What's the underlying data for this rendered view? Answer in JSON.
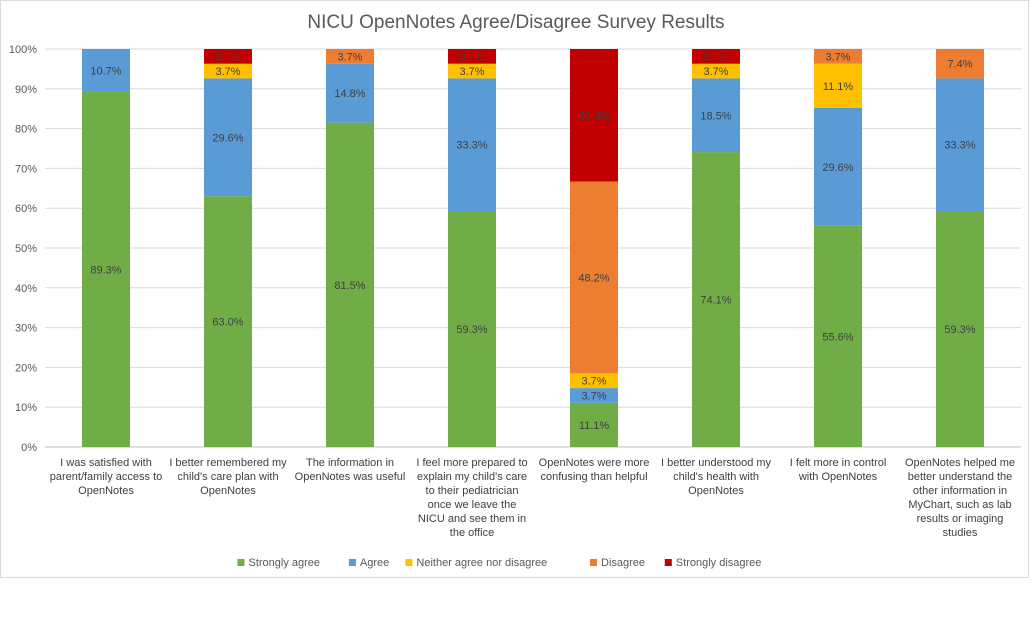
{
  "chart_data": {
    "type": "bar",
    "stacked": true,
    "title": "NICU OpenNotes Agree/Disagree Survey Results",
    "ylim": [
      0,
      100
    ],
    "yticks": [
      "0%",
      "10%",
      "20%",
      "30%",
      "40%",
      "50%",
      "60%",
      "70%",
      "80%",
      "90%",
      "100%"
    ],
    "grid": true,
    "legend_position": "bottom",
    "categories": [
      "I was satisfied with parent/family access to OpenNotes",
      "I better remembered my child's care plan with OpenNotes",
      "The information in OpenNotes was useful",
      "I feel more prepared to explain my child's care to their pediatrician once we leave the NICU and see them in the office",
      "OpenNotes were more confusing than helpful",
      "I better understood my child's health with OpenNotes",
      "I felt more in control with OpenNotes",
      "OpenNotes helped me better understand the other information in MyChart, such as lab results or imaging studies"
    ],
    "series": [
      {
        "name": "Strongly agree",
        "color": "#70ad47",
        "values": [
          89.3,
          63.0,
          81.5,
          59.3,
          11.1,
          74.1,
          55.6,
          59.3
        ],
        "labels": [
          "89.3%",
          "63.0%",
          "81.5%",
          "59.3%",
          "11.1%",
          "74.1%",
          "55.6%",
          "59.3%"
        ]
      },
      {
        "name": "Agree",
        "color": "#5b9bd5",
        "values": [
          10.7,
          29.6,
          14.8,
          33.3,
          3.7,
          18.5,
          29.6,
          33.3
        ],
        "labels": [
          "10.7%",
          "29.6%",
          "14.8%",
          "33.3%",
          "3.7%",
          "18.5%",
          "29.6%",
          "33.3%"
        ]
      },
      {
        "name": "Neither agree nor disagree",
        "color": "#ffc000",
        "values": [
          0,
          3.7,
          0,
          3.7,
          3.7,
          3.7,
          11.1,
          0
        ],
        "labels": [
          "",
          "3.7%",
          "",
          "3.7%",
          "3.7%",
          "3.7%",
          "11.1%",
          ""
        ]
      },
      {
        "name": "Disagree",
        "color": "#ed7d31",
        "values": [
          0,
          0,
          3.7,
          0,
          48.2,
          0,
          3.7,
          7.4
        ],
        "labels": [
          "",
          "",
          "3.7%",
          "",
          "48.2%",
          "",
          "3.7%",
          "7.4%"
        ]
      },
      {
        "name": "Strongly disagree",
        "color": "#c00000",
        "values": [
          0,
          3.7,
          0,
          3.7,
          33.3,
          3.7,
          0,
          0
        ],
        "labels": [
          "",
          "3.7%",
          "",
          "3.7%",
          "33.3%",
          "3.7%",
          "",
          ""
        ]
      }
    ]
  }
}
